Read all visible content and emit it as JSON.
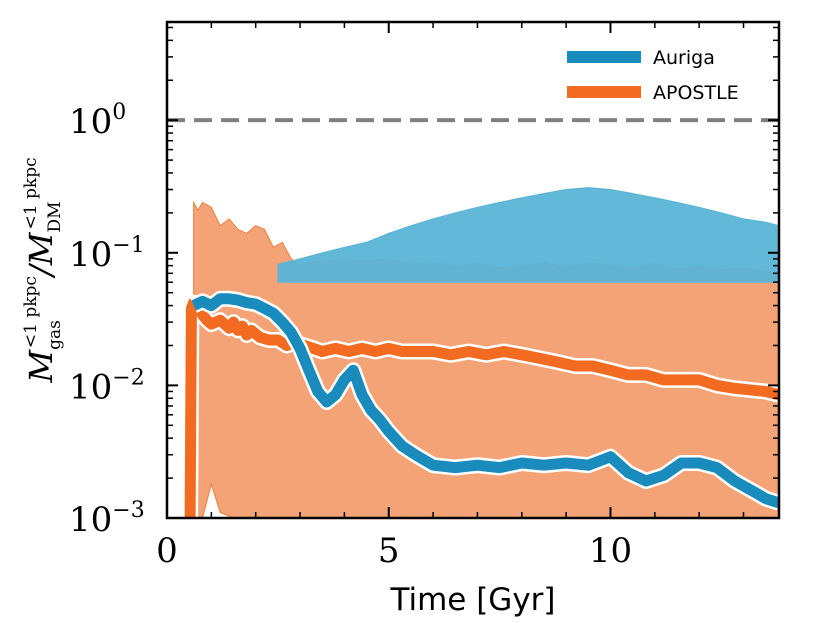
{
  "chart_data": {
    "type": "area",
    "title": "",
    "xlabel": "Time [Gyr]",
    "ylabel": {
      "main": "M",
      "num_sub": "gas",
      "num_sup": "<1 pkpc",
      "sep": "/M",
      "den_sub": "DM",
      "den_sup": "<1 pkpc"
    },
    "xlim": [
      0,
      13.8
    ],
    "ylim": [
      0.001,
      5.5
    ],
    "yscale": "log",
    "xticks": [
      0,
      5,
      10
    ],
    "xtick_labels": [
      "0",
      "5",
      "10"
    ],
    "yticks": [
      0.001,
      0.01,
      0.1,
      1
    ],
    "ytick_labels": [
      {
        "base": "10",
        "exp": "−3"
      },
      {
        "base": "10",
        "exp": "−2"
      },
      {
        "base": "10",
        "exp": "−1"
      },
      {
        "base": "10",
        "exp": "0"
      }
    ],
    "reference_line": {
      "y": 1,
      "style": "dashed",
      "color": "#808080"
    },
    "legend": {
      "position": "top-right",
      "entries": [
        {
          "label": "Auriga",
          "color": "#1a8bbd"
        },
        {
          "label": "APOSTLE",
          "color": "#f26b21"
        }
      ]
    },
    "series": [
      {
        "name": "APOSTLE",
        "color": "#f26b21",
        "band_color": "#ee8040",
        "band_upper": [
          [
            0.6,
            0.24
          ],
          [
            0.7,
            0.21
          ],
          [
            0.8,
            0.24
          ],
          [
            1.0,
            0.22
          ],
          [
            1.2,
            0.16
          ],
          [
            1.4,
            0.18
          ],
          [
            1.6,
            0.15
          ],
          [
            1.8,
            0.14
          ],
          [
            2.0,
            0.16
          ],
          [
            2.2,
            0.15
          ],
          [
            2.4,
            0.11
          ],
          [
            2.6,
            0.12
          ],
          [
            2.8,
            0.09
          ],
          [
            3.0,
            0.08
          ],
          [
            3.3,
            0.086
          ],
          [
            3.6,
            0.085
          ],
          [
            4.0,
            0.09
          ],
          [
            4.5,
            0.086
          ],
          [
            5.0,
            0.09
          ],
          [
            5.5,
            0.083
          ],
          [
            6.0,
            0.085
          ],
          [
            6.5,
            0.079
          ],
          [
            7.0,
            0.083
          ],
          [
            7.5,
            0.077
          ],
          [
            8.0,
            0.08
          ],
          [
            8.5,
            0.084
          ],
          [
            9.0,
            0.078
          ],
          [
            9.5,
            0.084
          ],
          [
            10.0,
            0.08
          ],
          [
            10.5,
            0.077
          ],
          [
            11.0,
            0.083
          ],
          [
            11.5,
            0.075
          ],
          [
            12.0,
            0.08
          ],
          [
            12.5,
            0.074
          ],
          [
            13.0,
            0.077
          ],
          [
            13.5,
            0.072
          ],
          [
            13.8,
            0.07
          ]
        ],
        "band_lower": [
          [
            0.6,
            0.001
          ],
          [
            0.8,
            0.001
          ],
          [
            1.0,
            0.0018
          ],
          [
            1.2,
            0.0011
          ],
          [
            1.5,
            0.001
          ],
          [
            2.0,
            0.001
          ],
          [
            13.8,
            0.001
          ]
        ],
        "median": [
          [
            0.52,
            0.001
          ],
          [
            0.55,
            0.038
          ],
          [
            0.6,
            0.042
          ],
          [
            0.7,
            0.04
          ],
          [
            0.8,
            0.034
          ],
          [
            0.9,
            0.031
          ],
          [
            1.0,
            0.029
          ],
          [
            1.2,
            0.031
          ],
          [
            1.4,
            0.027
          ],
          [
            1.5,
            0.03
          ],
          [
            1.6,
            0.026
          ],
          [
            1.7,
            0.028
          ],
          [
            1.8,
            0.024
          ],
          [
            1.9,
            0.026
          ],
          [
            2.1,
            0.023
          ],
          [
            2.3,
            0.022
          ],
          [
            2.5,
            0.022
          ],
          [
            2.7,
            0.02
          ],
          [
            2.9,
            0.021
          ],
          [
            3.1,
            0.02
          ],
          [
            3.3,
            0.019
          ],
          [
            3.5,
            0.018
          ],
          [
            3.8,
            0.019
          ],
          [
            4.1,
            0.018
          ],
          [
            4.4,
            0.019
          ],
          [
            4.7,
            0.018
          ],
          [
            5.0,
            0.019
          ],
          [
            5.3,
            0.018
          ],
          [
            5.6,
            0.018
          ],
          [
            6.0,
            0.018
          ],
          [
            6.4,
            0.017
          ],
          [
            6.8,
            0.018
          ],
          [
            7.2,
            0.017
          ],
          [
            7.6,
            0.018
          ],
          [
            8.0,
            0.017
          ],
          [
            8.4,
            0.016
          ],
          [
            8.8,
            0.015
          ],
          [
            9.2,
            0.014
          ],
          [
            9.6,
            0.014
          ],
          [
            10.0,
            0.013
          ],
          [
            10.4,
            0.012
          ],
          [
            10.8,
            0.012
          ],
          [
            11.2,
            0.011
          ],
          [
            11.6,
            0.011
          ],
          [
            12.0,
            0.011
          ],
          [
            12.4,
            0.01
          ],
          [
            12.8,
            0.0095
          ],
          [
            13.2,
            0.0092
          ],
          [
            13.5,
            0.009
          ],
          [
            13.8,
            0.0085
          ]
        ]
      },
      {
        "name": "Auriga",
        "color": "#1a8bbd",
        "band_color": "#5ab4d6",
        "band_upper": [
          [
            2.5,
            0.082
          ],
          [
            3.0,
            0.09
          ],
          [
            3.5,
            0.1
          ],
          [
            4.0,
            0.11
          ],
          [
            4.5,
            0.12
          ],
          [
            5.0,
            0.14
          ],
          [
            5.5,
            0.16
          ],
          [
            6.0,
            0.18
          ],
          [
            6.5,
            0.2
          ],
          [
            7.0,
            0.22
          ],
          [
            7.5,
            0.24
          ],
          [
            8.0,
            0.26
          ],
          [
            8.5,
            0.28
          ],
          [
            9.0,
            0.3
          ],
          [
            9.5,
            0.31
          ],
          [
            10.0,
            0.3
          ],
          [
            10.5,
            0.28
          ],
          [
            11.0,
            0.26
          ],
          [
            11.5,
            0.24
          ],
          [
            12.0,
            0.22
          ],
          [
            12.5,
            0.2
          ],
          [
            13.0,
            0.18
          ],
          [
            13.5,
            0.17
          ],
          [
            13.8,
            0.16
          ]
        ],
        "band_lower": [
          [
            2.5,
            0.06
          ],
          [
            13.8,
            0.06
          ]
        ],
        "median": [
          [
            0.6,
            0.04
          ],
          [
            0.8,
            0.043
          ],
          [
            1.0,
            0.04
          ],
          [
            1.2,
            0.045
          ],
          [
            1.4,
            0.045
          ],
          [
            1.6,
            0.044
          ],
          [
            1.8,
            0.042
          ],
          [
            2.0,
            0.041
          ],
          [
            2.2,
            0.038
          ],
          [
            2.4,
            0.035
          ],
          [
            2.6,
            0.03
          ],
          [
            2.8,
            0.025
          ],
          [
            3.0,
            0.019
          ],
          [
            3.2,
            0.013
          ],
          [
            3.4,
            0.009
          ],
          [
            3.6,
            0.0075
          ],
          [
            3.8,
            0.0085
          ],
          [
            4.0,
            0.011
          ],
          [
            4.2,
            0.013
          ],
          [
            4.4,
            0.0085
          ],
          [
            4.6,
            0.0065
          ],
          [
            4.8,
            0.0055
          ],
          [
            5.0,
            0.0045
          ],
          [
            5.3,
            0.0035
          ],
          [
            5.6,
            0.003
          ],
          [
            6.0,
            0.0025
          ],
          [
            6.5,
            0.0024
          ],
          [
            7.0,
            0.0025
          ],
          [
            7.5,
            0.0024
          ],
          [
            8.0,
            0.0026
          ],
          [
            8.5,
            0.0025
          ],
          [
            9.0,
            0.0026
          ],
          [
            9.5,
            0.0025
          ],
          [
            10.0,
            0.0029
          ],
          [
            10.4,
            0.0022
          ],
          [
            10.8,
            0.0019
          ],
          [
            11.2,
            0.0021
          ],
          [
            11.6,
            0.0026
          ],
          [
            12.0,
            0.0026
          ],
          [
            12.4,
            0.0024
          ],
          [
            12.8,
            0.0019
          ],
          [
            13.2,
            0.0016
          ],
          [
            13.5,
            0.0014
          ],
          [
            13.8,
            0.0013
          ]
        ]
      }
    ]
  }
}
